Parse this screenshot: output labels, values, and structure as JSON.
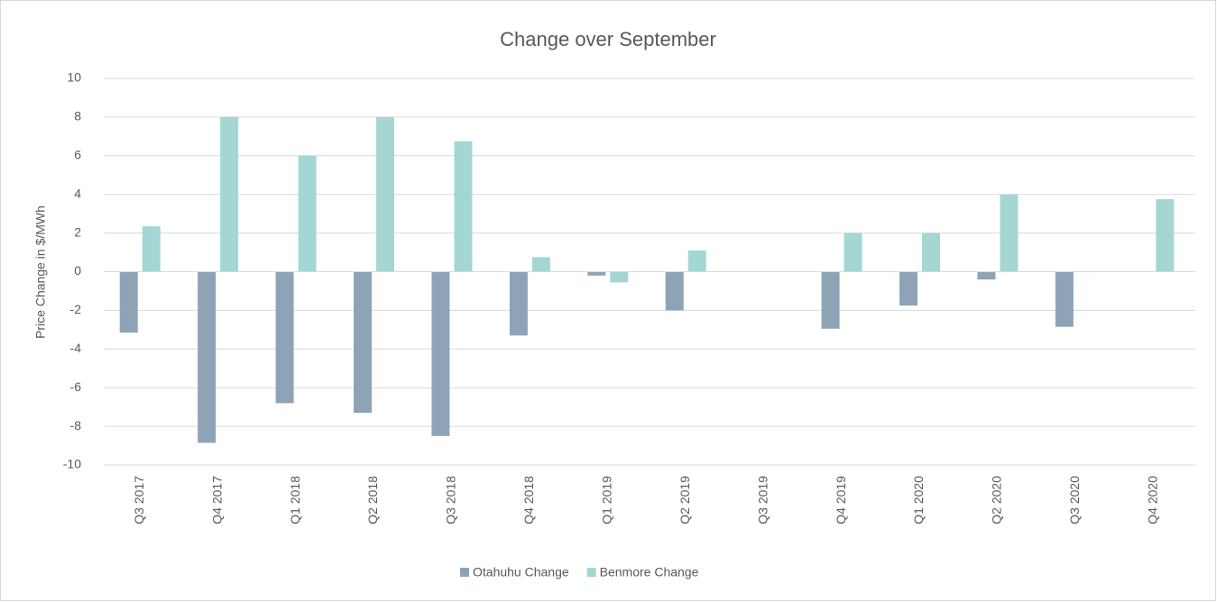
{
  "chart_data": {
    "type": "bar",
    "title": "Change over September",
    "y_label": "Price Change in $/MWh",
    "categories": [
      "Q3 2017",
      "Q4 2017",
      "Q1 2018",
      "Q2 2018",
      "Q3 2018",
      "Q4 2018",
      "Q1 2019",
      "Q2 2019",
      "Q3 2019",
      "Q4 2019",
      "Q1 2020",
      "Q2 2020",
      "Q3 2020",
      "Q4 2020"
    ],
    "series": [
      {
        "name": "Otahuhu Change",
        "color": "#8ea4b6",
        "values": [
          -3.15,
          -8.85,
          -6.8,
          -7.3,
          -8.5,
          -3.3,
          -0.2,
          -2.0,
          0,
          -2.95,
          -1.75,
          -0.4,
          -2.85,
          0
        ]
      },
      {
        "name": "Benmore Change",
        "color": "#a4d6d4",
        "values": [
          2.35,
          8.0,
          6.0,
          8.0,
          6.75,
          0.75,
          -0.55,
          1.1,
          0,
          2.0,
          2.0,
          4.0,
          0,
          3.75
        ]
      }
    ],
    "ylim": [
      -10,
      10
    ],
    "yticks": [
      -10,
      -8,
      -6,
      -4,
      -2,
      0,
      2,
      4,
      6,
      8,
      10
    ],
    "grid": true,
    "legend": "bottom"
  }
}
